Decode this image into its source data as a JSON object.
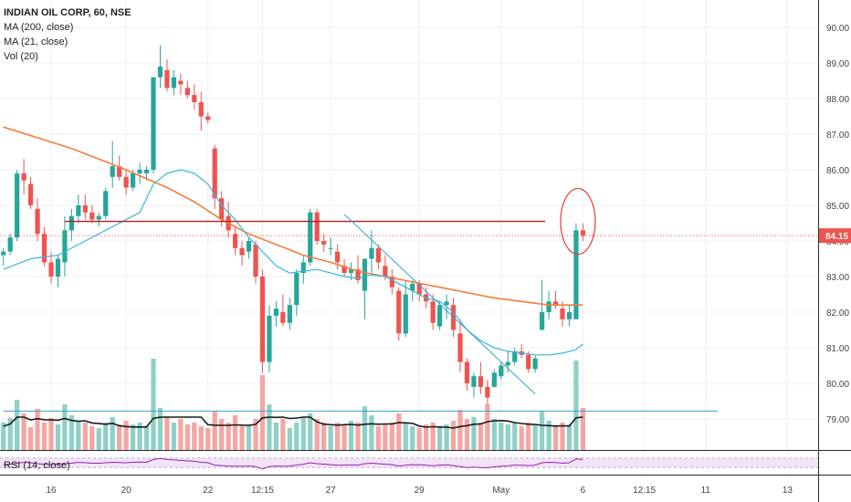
{
  "legend": {
    "symbol": "INDIAN OIL CORP, 60, NSE",
    "ma200": "MA (200, close)",
    "ma21": "MA (21, close)",
    "vol": "Vol (20)"
  },
  "rsi_label": "RSI (14, close)",
  "last_price_label": "84.15",
  "colors": {
    "up": "#26a69a",
    "down": "#ef5350",
    "up_vol": "#8fd0c7",
    "down_vol": "#f4a6a3",
    "ma200": "#f57c3c",
    "ma21": "#39b6d9",
    "vol_ma": "#1b1b1b",
    "resistance": "#b71c1c",
    "trendline": "#39a0c7",
    "rsi_line": "#8e24aa",
    "rsi_band": "#f3e3f8",
    "price_tag": "#ef5350"
  },
  "chart_data": {
    "type": "candlestick",
    "title": "INDIAN OIL CORP, 60, NSE",
    "xlabel": "",
    "ylabel": "",
    "ylim": [
      78.2,
      90.5
    ],
    "y_ticks": [
      "90.00",
      "89.00",
      "88.00",
      "87.00",
      "86.00",
      "85.00",
      "84.00",
      "83.00",
      "82.00",
      "81.00",
      "80.00",
      "79.00"
    ],
    "x_ticks": [
      {
        "label": "16",
        "index": 7
      },
      {
        "label": "20",
        "index": 18
      },
      {
        "label": "22",
        "index": 30
      },
      {
        "label": "12:15",
        "index": 38
      },
      {
        "label": "27",
        "index": 48
      },
      {
        "label": "29",
        "index": 61
      },
      {
        "label": "May",
        "index": 73
      },
      {
        "label": "6",
        "index": 85
      },
      {
        "label": "12:15",
        "index": 94
      },
      {
        "label": "11",
        "index": 103
      },
      {
        "label": "13",
        "index": 115
      }
    ],
    "total_slots": 120,
    "last_price": 84.15,
    "resistance_level": 84.55,
    "volume_threshold": 79.22,
    "candles": [
      [
        83.6,
        83.8,
        83.3,
        83.7
      ],
      [
        83.7,
        84.2,
        83.6,
        84.1
      ],
      [
        84.1,
        86.0,
        84.0,
        85.9
      ],
      [
        85.9,
        86.3,
        85.3,
        85.7
      ],
      [
        85.6,
        85.8,
        84.9,
        85.0
      ],
      [
        84.9,
        85.2,
        84.0,
        84.2
      ],
      [
        84.2,
        84.4,
        83.3,
        83.4
      ],
      [
        83.4,
        83.7,
        82.8,
        83.0
      ],
      [
        83.0,
        83.6,
        82.7,
        83.5
      ],
      [
        83.4,
        84.7,
        83.0,
        84.3
      ],
      [
        84.3,
        84.9,
        84.0,
        84.7
      ],
      [
        84.7,
        85.3,
        84.5,
        85.0
      ],
      [
        85.0,
        85.3,
        84.6,
        84.8
      ],
      [
        84.8,
        85.0,
        84.5,
        84.6
      ],
      [
        84.6,
        84.8,
        84.4,
        84.7
      ],
      [
        84.7,
        85.5,
        84.6,
        85.4
      ],
      [
        85.8,
        86.8,
        85.5,
        86.1
      ],
      [
        86.1,
        86.4,
        85.7,
        85.8
      ],
      [
        85.8,
        86.0,
        85.3,
        85.5
      ],
      [
        85.5,
        86.0,
        85.4,
        85.9
      ],
      [
        85.9,
        86.2,
        85.6,
        86.0
      ],
      [
        85.9,
        86.1,
        85.7,
        86.0
      ],
      [
        86.0,
        88.6,
        85.9,
        88.6
      ],
      [
        88.6,
        89.5,
        88.3,
        88.9
      ],
      [
        88.8,
        89.1,
        88.2,
        88.3
      ],
      [
        88.3,
        88.8,
        88.1,
        88.6
      ],
      [
        88.5,
        88.7,
        88.1,
        88.4
      ],
      [
        88.3,
        88.5,
        88.0,
        88.1
      ],
      [
        88.1,
        88.4,
        87.7,
        87.9
      ],
      [
        87.9,
        88.2,
        87.1,
        87.5
      ],
      [
        87.5,
        87.6,
        87.3,
        87.4
      ],
      [
        86.6,
        86.7,
        84.9,
        85.2
      ],
      [
        85.2,
        85.4,
        84.4,
        84.6
      ],
      [
        84.7,
        85.1,
        84.1,
        84.3
      ],
      [
        84.2,
        84.4,
        83.6,
        83.8
      ],
      [
        83.8,
        84.0,
        83.3,
        83.6
      ],
      [
        83.7,
        84.1,
        83.5,
        84.0
      ],
      [
        83.9,
        84.0,
        82.8,
        83.0
      ],
      [
        83.0,
        83.2,
        80.3,
        80.6
      ],
      [
        80.6,
        82.2,
        80.3,
        81.9
      ],
      [
        81.9,
        82.3,
        81.6,
        82.1
      ],
      [
        82.0,
        82.5,
        81.6,
        81.7
      ],
      [
        81.7,
        82.4,
        81.5,
        82.2
      ],
      [
        82.2,
        83.2,
        81.9,
        83.1
      ],
      [
        83.1,
        83.6,
        82.8,
        83.4
      ],
      [
        83.4,
        84.9,
        83.3,
        84.8
      ],
      [
        84.8,
        84.9,
        83.9,
        84.0
      ],
      [
        84.0,
        84.2,
        83.7,
        83.9
      ],
      [
        83.8,
        84.1,
        83.6,
        83.8
      ],
      [
        83.7,
        83.9,
        83.2,
        83.4
      ],
      [
        83.3,
        83.5,
        83.0,
        83.1
      ],
      [
        83.1,
        83.4,
        82.9,
        83.2
      ],
      [
        83.2,
        83.6,
        82.8,
        82.9
      ],
      [
        82.6,
        83.5,
        81.8,
        83.5
      ],
      [
        83.5,
        84.3,
        83.1,
        83.8
      ],
      [
        83.8,
        83.9,
        83.2,
        83.4
      ],
      [
        83.3,
        83.6,
        82.9,
        83.0
      ],
      [
        83.0,
        83.2,
        82.5,
        82.7
      ],
      [
        82.6,
        82.7,
        81.2,
        81.4
      ],
      [
        81.4,
        82.9,
        81.3,
        82.5
      ],
      [
        82.6,
        82.9,
        82.3,
        82.8
      ],
      [
        82.8,
        82.9,
        82.3,
        82.5
      ],
      [
        82.5,
        82.7,
        82.1,
        82.3
      ],
      [
        82.3,
        82.5,
        81.5,
        81.7
      ],
      [
        81.6,
        82.3,
        81.5,
        82.2
      ],
      [
        82.2,
        82.5,
        81.8,
        82.3
      ],
      [
        82.2,
        82.4,
        81.3,
        81.5
      ],
      [
        81.4,
        81.8,
        80.3,
        80.6
      ],
      [
        80.6,
        80.7,
        79.8,
        80.0
      ],
      [
        79.9,
        80.3,
        79.6,
        80.2
      ],
      [
        80.2,
        80.6,
        79.7,
        79.9
      ],
      [
        79.9,
        80.1,
        79.4,
        79.6
      ],
      [
        79.9,
        80.4,
        79.9,
        80.3
      ],
      [
        80.2,
        80.6,
        80.1,
        80.5
      ],
      [
        80.5,
        80.9,
        80.3,
        80.6
      ],
      [
        80.6,
        81.0,
        80.5,
        80.9
      ],
      [
        80.9,
        81.1,
        80.7,
        80.8
      ],
      [
        80.8,
        80.9,
        80.3,
        80.4
      ],
      [
        80.4,
        80.8,
        80.3,
        80.7
      ],
      [
        81.5,
        82.9,
        81.5,
        82.0
      ],
      [
        82.0,
        82.6,
        81.8,
        82.3
      ],
      [
        82.3,
        82.6,
        82.1,
        82.2
      ],
      [
        82.1,
        82.3,
        81.6,
        81.8
      ],
      [
        81.8,
        82.2,
        81.6,
        82.0
      ],
      [
        81.8,
        84.5,
        81.8,
        84.3
      ],
      [
        84.3,
        84.5,
        84.0,
        84.15
      ]
    ],
    "ma200": [
      [
        0,
        87.2
      ],
      [
        10,
        86.6
      ],
      [
        18,
        86.0
      ],
      [
        24,
        85.5
      ],
      [
        28,
        85.1
      ],
      [
        32,
        84.6
      ],
      [
        36,
        84.2
      ],
      [
        40,
        83.9
      ],
      [
        44,
        83.6
      ],
      [
        48,
        83.4
      ],
      [
        52,
        83.15
      ],
      [
        56,
        83.0
      ],
      [
        60,
        82.85
      ],
      [
        64,
        82.7
      ],
      [
        68,
        82.55
      ],
      [
        72,
        82.4
      ],
      [
        76,
        82.3
      ],
      [
        80,
        82.2
      ],
      [
        85,
        82.2
      ]
    ],
    "ma21": [
      [
        0,
        83.2
      ],
      [
        4,
        83.5
      ],
      [
        8,
        83.6
      ],
      [
        12,
        84.0
      ],
      [
        16,
        84.4
      ],
      [
        20,
        84.8
      ],
      [
        22,
        85.6
      ],
      [
        24,
        85.9
      ],
      [
        26,
        86.0
      ],
      [
        28,
        85.9
      ],
      [
        30,
        85.6
      ],
      [
        32,
        85.0
      ],
      [
        34,
        84.6
      ],
      [
        36,
        84.1
      ],
      [
        38,
        83.7
      ],
      [
        40,
        83.3
      ],
      [
        42,
        83.1
      ],
      [
        44,
        83.15
      ],
      [
        46,
        83.2
      ],
      [
        48,
        83.1
      ],
      [
        50,
        83.0
      ],
      [
        52,
        82.95
      ],
      [
        54,
        83.05
      ],
      [
        56,
        83.0
      ],
      [
        58,
        82.8
      ],
      [
        60,
        82.6
      ],
      [
        62,
        82.4
      ],
      [
        64,
        82.3
      ],
      [
        66,
        82.0
      ],
      [
        68,
        81.5
      ],
      [
        70,
        81.2
      ],
      [
        72,
        81.0
      ],
      [
        74,
        80.9
      ],
      [
        76,
        80.85
      ],
      [
        78,
        80.8
      ],
      [
        80,
        80.8
      ],
      [
        82,
        80.85
      ],
      [
        84,
        80.95
      ],
      [
        85,
        81.1
      ]
    ],
    "volume": [
      0.3,
      0.35,
      0.55,
      0.4,
      0.25,
      0.45,
      0.3,
      0.35,
      0.28,
      0.5,
      0.38,
      0.32,
      0.3,
      0.26,
      0.24,
      0.3,
      0.36,
      0.28,
      0.32,
      0.28,
      0.3,
      0.26,
      1.0,
      0.46,
      0.36,
      0.3,
      0.34,
      0.28,
      0.3,
      0.26,
      0.24,
      0.42,
      0.34,
      0.3,
      0.38,
      0.26,
      0.28,
      0.34,
      0.82,
      0.5,
      0.3,
      0.34,
      0.24,
      0.3,
      0.36,
      0.4,
      0.34,
      0.3,
      0.26,
      0.3,
      0.28,
      0.32,
      0.3,
      0.48,
      0.38,
      0.26,
      0.28,
      0.3,
      0.4,
      0.3,
      0.26,
      0.24,
      0.28,
      0.3,
      0.26,
      0.28,
      0.32,
      0.44,
      0.34,
      0.36,
      0.3,
      0.5,
      0.34,
      0.3,
      0.28,
      0.3,
      0.26,
      0.3,
      0.28,
      0.42,
      0.32,
      0.26,
      0.3,
      0.28,
      0.98,
      0.46
    ],
    "rsi": [
      42,
      44,
      48,
      52,
      50,
      46,
      44,
      42,
      44,
      46,
      48,
      52,
      50,
      48,
      48,
      50,
      52,
      51,
      50,
      52,
      53,
      52,
      64,
      68,
      64,
      62,
      60,
      58,
      56,
      52,
      50,
      40,
      38,
      36,
      35,
      35,
      36,
      34,
      24,
      34,
      36,
      35,
      36,
      40,
      44,
      50,
      46,
      44,
      42,
      40,
      40,
      41,
      40,
      46,
      48,
      46,
      44,
      42,
      36,
      40,
      42,
      41,
      40,
      37,
      40,
      41,
      38,
      34,
      30,
      32,
      30,
      29,
      33,
      35,
      37,
      40,
      40,
      38,
      40,
      50,
      52,
      51,
      48,
      50,
      66,
      64
    ],
    "rsi_ylim": [
      0,
      100
    ],
    "rsi_bands": [
      30,
      70
    ]
  }
}
